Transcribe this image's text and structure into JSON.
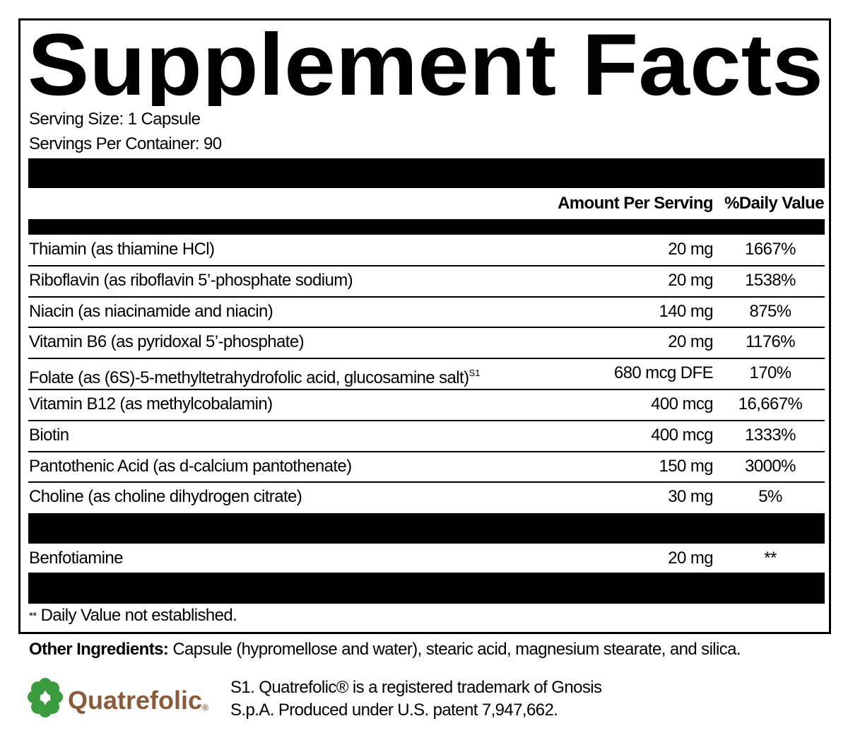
{
  "title": "Supplement Facts",
  "serving_size": "Serving Size: 1 Capsule",
  "servings_per_container": "Servings Per Container: 90",
  "columns": {
    "amount": "Amount Per Serving",
    "daily_value": "%Daily Value"
  },
  "rows": [
    {
      "name": "Thiamin (as thiamine HCl)",
      "amount": "20 mg",
      "daily_value": "1667%"
    },
    {
      "name": "Riboflavin (as riboflavin 5’-phosphate sodium)",
      "amount": "20 mg",
      "daily_value": "1538%"
    },
    {
      "name": "Niacin (as niacinamide and niacin)",
      "amount": "140 mg",
      "daily_value": "875%"
    },
    {
      "name": "Vitamin B6 (as pyridoxal 5’-phosphate)",
      "amount": "20 mg",
      "daily_value": "1176%"
    },
    {
      "name": "Folate (as (6S)-5-methyltetrahydrofolic acid, glucosamine salt)",
      "sup": "S1",
      "amount": "680 mcg DFE",
      "daily_value": "170%"
    },
    {
      "name": "Vitamin B12 (as methylcobalamin)",
      "amount": "400 mcg",
      "daily_value": "16,667%"
    },
    {
      "name": "Biotin",
      "amount": "400 mcg",
      "daily_value": "1333%"
    },
    {
      "name": "Pantothenic Acid (as d-calcium pantothenate)",
      "amount": "150 mg",
      "daily_value": "3000%"
    },
    {
      "name": "Choline (as choline dihydrogen citrate)",
      "amount": "30 mg",
      "daily_value": "5%"
    }
  ],
  "other_rows": [
    {
      "name": "Benfotiamine",
      "amount": "20 mg",
      "daily_value": "**"
    }
  ],
  "footnote": {
    "marker": "**",
    "text": "Daily Value not established."
  },
  "other_ingredients": {
    "label": "Other Ingredients:",
    "text": "Capsule (hypromellose and water), stearic acid, magnesium stearate, and silica."
  },
  "logo": {
    "text": "Quatrefolic",
    "mark": "®"
  },
  "notes": [
    "S1. Quatrefolic® is a registered trademark of Gnosis",
    "S.p.A. Produced under U.S. patent 7,947,662."
  ]
}
